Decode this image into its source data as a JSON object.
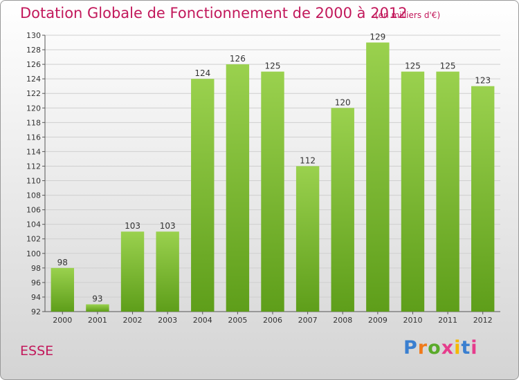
{
  "chart_data": {
    "type": "bar",
    "title": "Dotation Globale de Fonctionnement de 2000 à 2012",
    "subtitle": "(en milliers d'€)",
    "categories": [
      "2000",
      "2001",
      "2002",
      "2003",
      "2004",
      "2005",
      "2006",
      "2007",
      "2008",
      "2009",
      "2010",
      "2011",
      "2012"
    ],
    "values": [
      98,
      93,
      103,
      103,
      124,
      126,
      125,
      112,
      120,
      129,
      125,
      125,
      123
    ],
    "ylim": [
      92,
      130
    ],
    "ytick_step": 2,
    "grid": true,
    "bar_color": "#7cc130"
  },
  "footer": {
    "commune": "ESSE",
    "logo": {
      "letters": [
        "P",
        "r",
        "o",
        "x",
        "i",
        "t",
        "i"
      ],
      "colors": [
        "#3a7fd0",
        "#f07a1a",
        "#5aaa2a",
        "#e63c8c",
        "#f5b800",
        "#3a7fd0",
        "#e63c8c"
      ]
    }
  }
}
